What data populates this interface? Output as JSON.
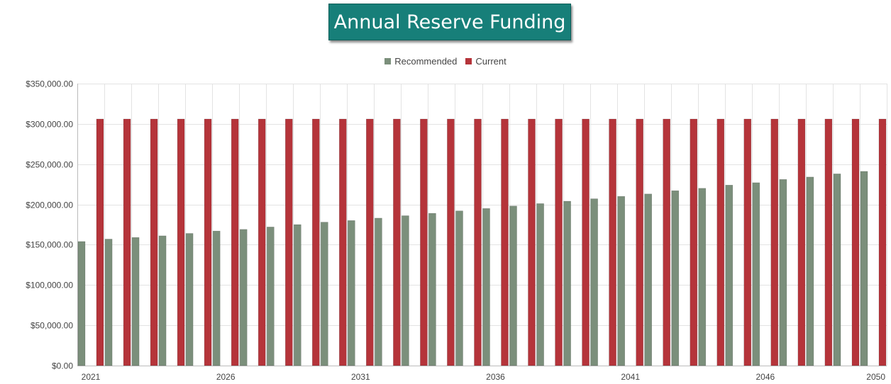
{
  "chart_data": {
    "type": "bar",
    "title": "Annual Reserve Funding",
    "xlabel": "",
    "ylabel": "",
    "ylim": [
      0,
      350000
    ],
    "y_ticks": [
      {
        "value": 0,
        "label": "$0.00"
      },
      {
        "value": 50000,
        "label": "$50,000.00"
      },
      {
        "value": 100000,
        "label": "$100,000.00"
      },
      {
        "value": 150000,
        "label": "$150,000.00"
      },
      {
        "value": 200000,
        "label": "$200,000.00"
      },
      {
        "value": 250000,
        "label": "$250,000.00"
      },
      {
        "value": 300000,
        "label": "$300,000.00"
      },
      {
        "value": 350000,
        "label": "$350,000.00"
      }
    ],
    "x_tick_labels": [
      "2021",
      "2026",
      "2031",
      "2036",
      "2041",
      "2046",
      "2050"
    ],
    "categories": [
      "2021",
      "2022",
      "2023",
      "2024",
      "2025",
      "2026",
      "2027",
      "2028",
      "2029",
      "2030",
      "2031",
      "2032",
      "2033",
      "2034",
      "2035",
      "2036",
      "2037",
      "2038",
      "2039",
      "2040",
      "2041",
      "2042",
      "2043",
      "2044",
      "2045",
      "2046",
      "2047",
      "2048",
      "2049",
      "2050"
    ],
    "series": [
      {
        "name": "Recommended",
        "color": "#7b8f7b",
        "values": [
          154000,
          157000,
          159000,
          161000,
          164000,
          167000,
          169000,
          172000,
          175000,
          178000,
          180000,
          183000,
          186000,
          189000,
          192000,
          195000,
          198000,
          201000,
          204000,
          207000,
          210000,
          213000,
          217000,
          220000,
          224000,
          227000,
          231000,
          234000,
          238000,
          241000
        ]
      },
      {
        "name": "Current",
        "color": "#b5343a",
        "values": [
          306000,
          306000,
          306000,
          306000,
          306000,
          306000,
          306000,
          306000,
          306000,
          306000,
          306000,
          306000,
          306000,
          306000,
          306000,
          306000,
          306000,
          306000,
          306000,
          306000,
          306000,
          306000,
          306000,
          306000,
          306000,
          306000,
          306000,
          306000,
          306000,
          306000
        ]
      }
    ],
    "grid": true,
    "legend_position": "top-center"
  },
  "colors": {
    "title_background": "#177f79",
    "grid": "#e3e3e3",
    "axis": "#bbbbbb"
  }
}
